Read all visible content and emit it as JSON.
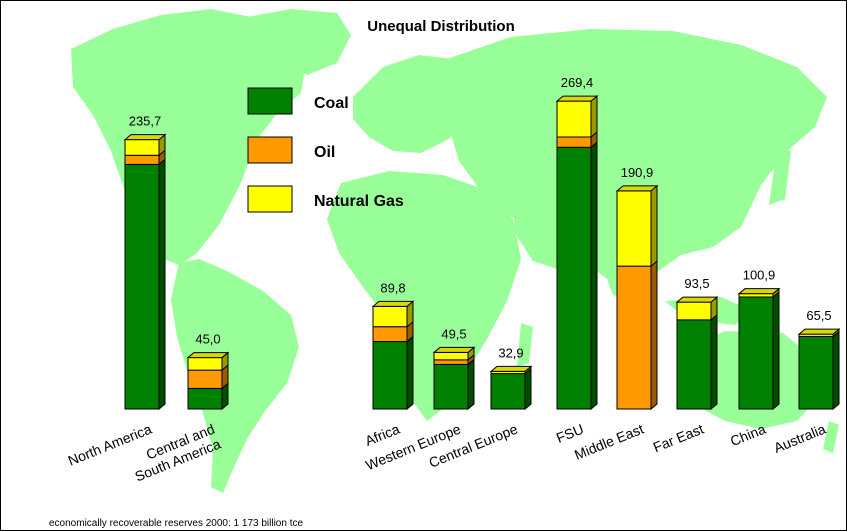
{
  "chart_data": {
    "type": "bar",
    "stacked": true,
    "title": "Unequal Distribution",
    "footnote": "economically recoverable reserves 2000: 1 173 billion tce",
    "categories": [
      "North America",
      "Central and South America",
      "Africa",
      "Western Europe",
      "Central Europe",
      "FSU",
      "Middle East",
      "Far East",
      "China",
      "Australia"
    ],
    "category_lines": [
      [
        "North America"
      ],
      [
        "Central and",
        "South America"
      ],
      [
        "Africa"
      ],
      [
        "Western Europe"
      ],
      [
        "Central Europe"
      ],
      [
        "FSU"
      ],
      [
        "Middle East"
      ],
      [
        "Far East"
      ],
      [
        "China"
      ],
      [
        "Australia"
      ]
    ],
    "totals": [
      235.7,
      45.0,
      89.8,
      49.5,
      32.9,
      269.4,
      190.9,
      93.5,
      100.9,
      65.5
    ],
    "total_labels": [
      "235,7",
      "45,0",
      "89,8",
      "49,5",
      "32,9",
      "269,4",
      "190,9",
      "93,5",
      "100,9",
      "65,5"
    ],
    "series": [
      {
        "name": "Coal",
        "color": "#008000",
        "values": [
          214.0,
          18.0,
          59.0,
          39.0,
          31.0,
          229.0,
          0.0,
          78.0,
          98.0,
          63.5
        ]
      },
      {
        "name": "Oil",
        "color": "#FF9900",
        "values": [
          8.0,
          16.0,
          13.0,
          4.0,
          0.0,
          9.0,
          125.0,
          0.0,
          0.0,
          0.0
        ]
      },
      {
        "name": "Natural Gas",
        "color": "#FFFF00",
        "values": [
          13.7,
          11.0,
          17.8,
          6.5,
          1.9,
          31.4,
          65.9,
          15.5,
          2.9,
          2.0
        ]
      }
    ],
    "ylim": [
      0,
      280
    ],
    "legend_position": "top-left",
    "grid": false
  },
  "colors": {
    "map": "#99FF99",
    "outline": "#000000"
  }
}
